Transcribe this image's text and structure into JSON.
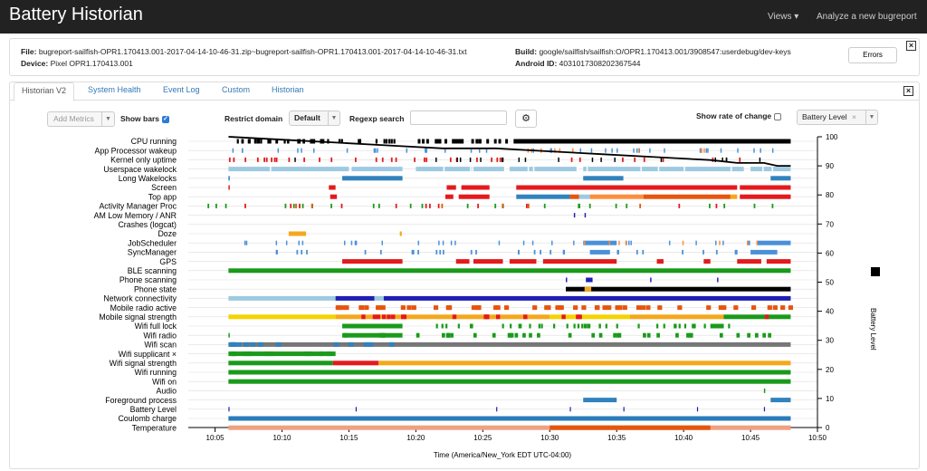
{
  "navbar": {
    "title": "Battery Historian",
    "views_label": "Views ▾",
    "analyze_label": "Analyze a new bugreport"
  },
  "info": {
    "file_label": "File:",
    "file_value": "bugreport-sailfish-OPR1.170413.001-2017-04-14-10-46-31.zip~bugreport-sailfish-OPR1.170413.001-2017-04-14-10-46-31.txt",
    "device_label": "Device:",
    "device_value": "Pixel OPR1.170413.001",
    "build_label": "Build:",
    "build_value": "google/sailfish/sailfish:O/OPR1.170413.001/3908547:userdebug/dev-keys",
    "android_id_label": "Android ID:",
    "android_id_value": "4031017308202367544",
    "errors_label": "Errors"
  },
  "tabs": [
    "Historian V2",
    "System Health",
    "Event Log",
    "Custom",
    "Historian"
  ],
  "controls": {
    "add_metrics_placeholder": "Add Metrics",
    "show_bars_label": "Show bars",
    "show_bars_checked": true,
    "restrict_domain_label": "Restrict domain",
    "restrict_domain_value": "Default",
    "regexp_label": "Regexp search",
    "regexp_value": "",
    "gear_icon": "gear-icon",
    "show_rate_label": "Show rate of change",
    "show_rate_checked": false,
    "metric_value": "Battery Level"
  },
  "chart_data": {
    "type": "timeline",
    "rows": [
      "CPU running",
      "App Processor wakeup",
      "Kernel only uptime",
      "Userspace wakelock",
      "Long Wakelocks",
      "Screen",
      "Top app",
      "Activity Manager Proc",
      "AM Low Memory / ANR",
      "Crashes (logcat)",
      "Doze",
      "JobScheduler",
      "SyncManager",
      "GPS",
      "BLE scanning",
      "Phone scanning",
      "Phone state",
      "Network connectivity",
      "Mobile radio active",
      "Mobile signal strength",
      "Wifi full lock",
      "Wifi radio",
      "Wifi scan",
      "Wifi supplicant ×",
      "Wifi signal strength",
      "Wifi running",
      "Wifi on",
      "Audio",
      "Foreground process",
      "Battery Level",
      "Coulomb charge",
      "Temperature"
    ],
    "x_ticks": [
      "10:05",
      "10:10",
      "10:15",
      "10:20",
      "10:25",
      "10:30",
      "10:35",
      "10:40",
      "10:45",
      "10:50"
    ],
    "x_range_minutes": [
      3,
      50
    ],
    "xlabel": "Time (America/New_York EDT UTC-04:00)",
    "y_ticks": [
      0,
      10,
      20,
      30,
      40,
      50,
      60,
      70,
      80,
      90,
      100
    ],
    "ylim": [
      0,
      100
    ],
    "ylabel": "Battery Level",
    "battery_level": {
      "x": [
        6,
        10,
        14,
        18,
        22,
        26,
        30,
        34,
        38,
        42,
        44,
        46,
        47,
        48
      ],
      "y": [
        100,
        99,
        98,
        97,
        96,
        96,
        95,
        94,
        93,
        92,
        91,
        91,
        90,
        90
      ]
    },
    "colors": {
      "black": "#000000",
      "blue": "#4a90d9",
      "lightblue": "#9ecae1",
      "steelblue": "#3182bd",
      "red": "#e41a1c",
      "orange": "#fd8d3c",
      "darkorange": "#e6550d",
      "green": "#1a9a1a",
      "yellow": "#f5d300",
      "navy": "#1f1fb4",
      "gold": "#f5a81c",
      "grey": "#777777",
      "teal": "#2b7bba",
      "salmon": "#f0a080"
    }
  }
}
